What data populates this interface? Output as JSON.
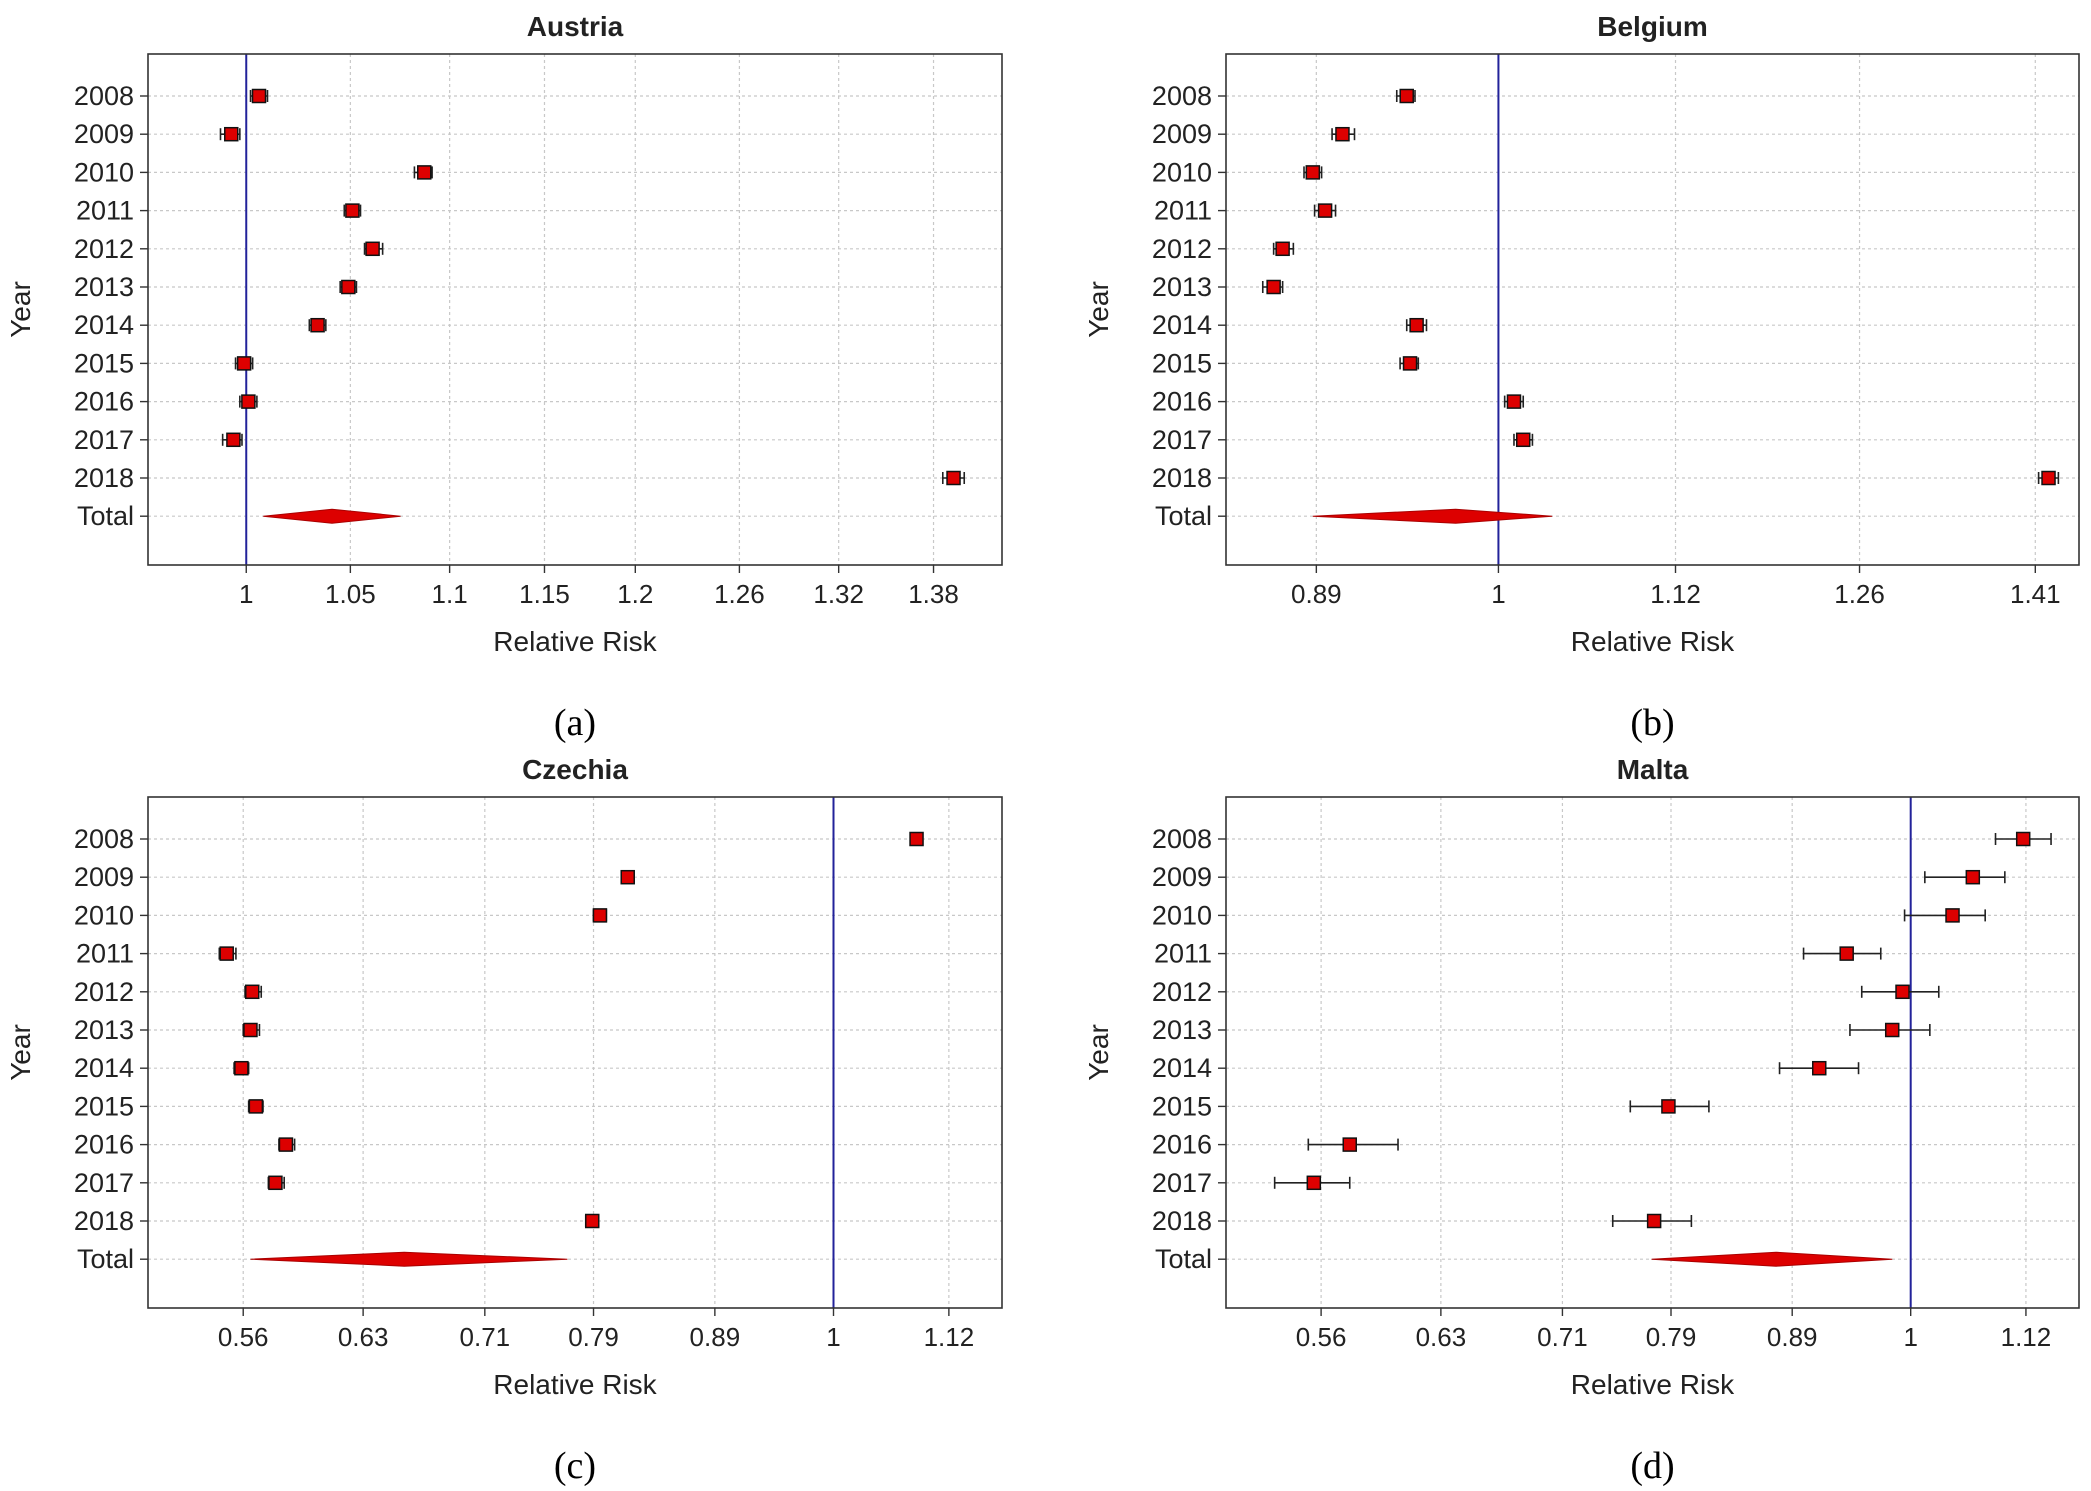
{
  "ylabel": "Year",
  "xlabel": "Relative Risk",
  "row_labels": [
    "2008",
    "2009",
    "2010",
    "2011",
    "2012",
    "2013",
    "2014",
    "2015",
    "2016",
    "2017",
    "2018",
    "Total"
  ],
  "colors": {
    "marker": "#dd0000",
    "reference_line": "#22229a",
    "grid": "#c8c8c8",
    "frame": "#333333"
  },
  "chart_data": [
    {
      "type": "forest",
      "panel": "a",
      "caption": "(a)",
      "title": "Austria",
      "xlabel": "Relative Risk",
      "ylabel": "Year",
      "xscale": "log",
      "xlim": [
        0.955,
        1.425
      ],
      "reference": 1,
      "xticks": [
        1,
        1.05,
        1.1,
        1.15,
        1.2,
        1.26,
        1.32,
        1.38
      ],
      "xtick_labels": [
        "1",
        "1.05",
        "1.1",
        "1.15",
        "1.2",
        "1.26",
        "1.32",
        "1.38"
      ],
      "years": [
        "2008",
        "2009",
        "2010",
        "2011",
        "2012",
        "2013",
        "2014",
        "2015",
        "2016",
        "2017",
        "2018"
      ],
      "estimates": [
        1.006,
        0.993,
        1.087,
        1.051,
        1.061,
        1.049,
        1.034,
        0.999,
        1.001,
        0.994,
        1.393
      ],
      "ci_low": [
        1.002,
        0.988,
        1.082,
        1.047,
        1.057,
        1.045,
        1.03,
        0.995,
        0.997,
        0.989,
        1.386
      ],
      "ci_high": [
        1.01,
        0.997,
        1.091,
        1.055,
        1.066,
        1.053,
        1.038,
        1.003,
        1.005,
        0.998,
        1.4
      ],
      "total": {
        "estimate": 1.041,
        "ci_low": 1.008,
        "ci_high": 1.075
      }
    },
    {
      "type": "forest",
      "panel": "b",
      "caption": "(b)",
      "title": "Belgium",
      "xlabel": "Relative Risk",
      "ylabel": "Year",
      "xscale": "log",
      "xlim": [
        0.84,
        1.45
      ],
      "reference": 1,
      "xticks": [
        0.89,
        1,
        1.12,
        1.26,
        1.41
      ],
      "xtick_labels": [
        "0.89",
        "1",
        "1.12",
        "1.26",
        "1.41"
      ],
      "years": [
        "2008",
        "2009",
        "2010",
        "2011",
        "2012",
        "2013",
        "2014",
        "2015",
        "2016",
        "2017",
        "2018"
      ],
      "estimates": [
        0.943,
        0.905,
        0.888,
        0.895,
        0.871,
        0.866,
        0.949,
        0.945,
        1.01,
        1.016,
        1.422
      ],
      "ci_low": [
        0.937,
        0.899,
        0.883,
        0.889,
        0.866,
        0.86,
        0.943,
        0.939,
        1.004,
        1.01,
        1.413
      ],
      "ci_high": [
        0.948,
        0.912,
        0.893,
        0.901,
        0.877,
        0.871,
        0.955,
        0.95,
        1.016,
        1.022,
        1.431
      ],
      "total": {
        "estimate": 0.973,
        "ci_low": 0.888,
        "ci_high": 1.035
      }
    },
    {
      "type": "forest",
      "panel": "c",
      "caption": "(c)",
      "title": "Czechia",
      "xlabel": "Relative Risk",
      "ylabel": "Year",
      "xscale": "log",
      "xlim": [
        0.51,
        1.18
      ],
      "reference": 1,
      "xticks": [
        0.56,
        0.63,
        0.71,
        0.79,
        0.89,
        1,
        1.12
      ],
      "xtick_labels": [
        "0.56",
        "0.63",
        "0.71",
        "0.79",
        "0.89",
        "1",
        "1.12"
      ],
      "years": [
        "2008",
        "2009",
        "2010",
        "2011",
        "2012",
        "2013",
        "2014",
        "2015",
        "2016",
        "2017",
        "2018"
      ],
      "estimates": [
        1.085,
        0.817,
        0.795,
        0.551,
        0.565,
        0.564,
        0.559,
        0.567,
        0.584,
        0.578,
        0.789
      ],
      "ci_low": [
        1.08,
        0.812,
        0.79,
        0.547,
        0.561,
        0.56,
        0.555,
        0.563,
        0.58,
        0.574,
        0.784
      ],
      "ci_high": [
        1.09,
        0.822,
        0.8,
        0.556,
        0.57,
        0.569,
        0.563,
        0.571,
        0.589,
        0.583,
        0.794
      ],
      "total": {
        "estimate": 0.656,
        "ci_low": 0.564,
        "ci_high": 0.77
      }
    },
    {
      "type": "forest",
      "panel": "d",
      "caption": "(d)",
      "title": "Malta",
      "xlabel": "Relative Risk",
      "ylabel": "Year",
      "xscale": "log",
      "xlim": [
        0.51,
        1.18
      ],
      "reference": 1,
      "xticks": [
        0.56,
        0.63,
        0.71,
        0.79,
        0.89,
        1,
        1.12
      ],
      "xtick_labels": [
        "0.56",
        "0.63",
        "0.71",
        "0.79",
        "0.89",
        "1",
        "1.12"
      ],
      "years": [
        "2008",
        "2009",
        "2010",
        "2011",
        "2012",
        "2013",
        "2014",
        "2015",
        "2016",
        "2017",
        "2018"
      ],
      "estimates": [
        1.117,
        1.063,
        1.042,
        0.939,
        0.992,
        0.982,
        0.914,
        0.788,
        0.576,
        0.556,
        0.777
      ],
      "ci_low": [
        1.087,
        1.014,
        0.994,
        0.9,
        0.953,
        0.942,
        0.879,
        0.759,
        0.553,
        0.535,
        0.746
      ],
      "ci_high": [
        1.148,
        1.097,
        1.076,
        0.971,
        1.028,
        1.019,
        0.95,
        0.82,
        0.604,
        0.576,
        0.806
      ],
      "total": {
        "estimate": 0.876,
        "ci_low": 0.775,
        "ci_high": 0.982
      }
    }
  ]
}
